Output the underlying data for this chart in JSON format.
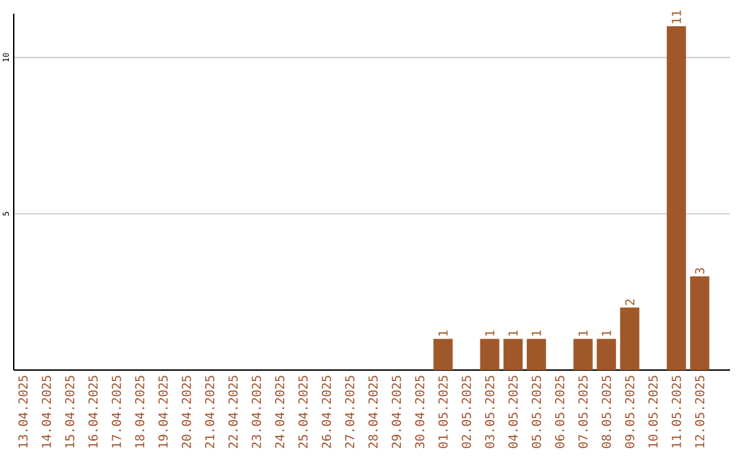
{
  "chart_data": {
    "type": "bar",
    "categories": [
      "13.04.2025",
      "14.04.2025",
      "15.04.2025",
      "16.04.2025",
      "17.04.2025",
      "18.04.2025",
      "19.04.2025",
      "20.04.2025",
      "21.04.2025",
      "22.04.2025",
      "23.04.2025",
      "24.04.2025",
      "25.04.2025",
      "26.04.2025",
      "27.04.2025",
      "28.04.2025",
      "29.04.2025",
      "30.04.2025",
      "01.05.2025",
      "02.05.2025",
      "03.05.2025",
      "04.05.2025",
      "05.05.2025",
      "06.05.2025",
      "07.05.2025",
      "08.05.2025",
      "09.05.2025",
      "10.05.2025",
      "11.05.2025",
      "12.05.2025"
    ],
    "values": [
      0,
      0,
      0,
      0,
      0,
      0,
      0,
      0,
      0,
      0,
      0,
      0,
      0,
      0,
      0,
      0,
      0,
      0,
      1,
      0,
      1,
      1,
      1,
      0,
      1,
      1,
      2,
      0,
      11,
      3
    ],
    "value_labels": [
      null,
      null,
      null,
      null,
      null,
      null,
      null,
      null,
      null,
      null,
      null,
      null,
      null,
      null,
      null,
      null,
      null,
      null,
      "1",
      null,
      "1",
      "1",
      "1",
      null,
      "1",
      "1",
      "2",
      null,
      "11",
      "3"
    ],
    "color": "#a0582a",
    "ylim": [
      0,
      11.4
    ],
    "yticks": [
      5,
      10
    ],
    "grid": "y"
  }
}
